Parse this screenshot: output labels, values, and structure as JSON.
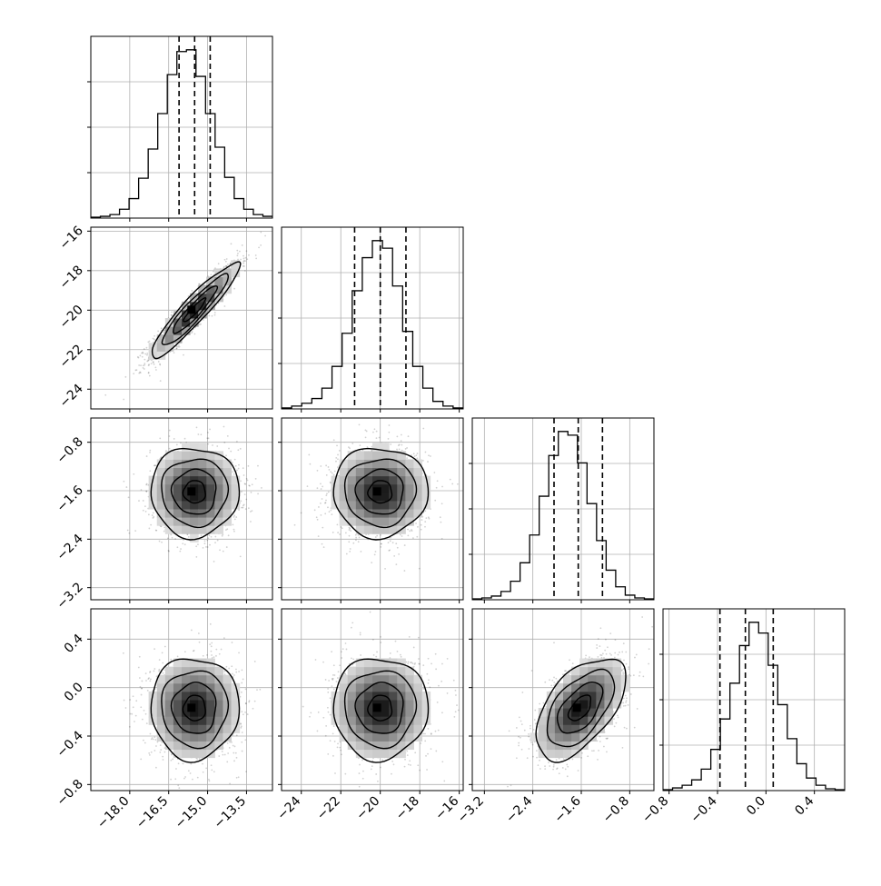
{
  "chart_data": {
    "type": "corner",
    "grid": true,
    "parameters": [
      {
        "range": [
          -19.5,
          -12.5
        ],
        "quantiles": [
          -16.1,
          -15.5,
          -14.9
        ],
        "ticks": [
          -18.0,
          -16.5,
          -15.0,
          -13.5
        ],
        "tick_labels": [
          "−18.0",
          "−16.5",
          "−15.0",
          "−13.5"
        ],
        "mean": -15.5,
        "sd": 0.85,
        "hist": [
          1,
          2,
          4,
          10,
          22,
          45,
          78,
          118,
          162,
          188,
          190,
          160,
          118,
          80,
          46,
          22,
          10,
          4,
          2
        ]
      },
      {
        "range": [
          -25,
          -15.8
        ],
        "quantiles": [
          -21.3,
          -20.0,
          -18.7
        ],
        "ticks": [
          -24,
          -22,
          -20,
          -18,
          -16
        ],
        "tick_labels": [
          "−24",
          "−22",
          "−20",
          "−18",
          "−16"
        ],
        "mean": -20.0,
        "sd": 1.2,
        "hist": [
          1,
          3,
          6,
          11,
          22,
          45,
          80,
          125,
          160,
          178,
          170,
          130,
          82,
          45,
          22,
          8,
          3,
          1
        ]
      },
      {
        "range": [
          -3.4,
          -0.4
        ],
        "quantiles": [
          -2.05,
          -1.65,
          -1.25
        ],
        "ticks": [
          -3.2,
          -2.4,
          -1.6,
          -0.8
        ],
        "tick_labels": [
          "−3.2",
          "−2.4",
          "−1.6",
          "−0.8"
        ],
        "mean": -1.62,
        "sd": 0.37,
        "hist": [
          1,
          2,
          4,
          9,
          20,
          40,
          70,
          112,
          156,
          182,
          178,
          148,
          104,
          64,
          32,
          14,
          5,
          2,
          1
        ]
      },
      {
        "range": [
          -0.85,
          0.65
        ],
        "quantiles": [
          -0.38,
          -0.17,
          0.06
        ],
        "ticks": [
          -0.8,
          -0.4,
          0.0,
          0.4
        ],
        "tick_labels": [
          "−0.8",
          "−0.4",
          "0.0",
          "0.4"
        ],
        "mean": -0.17,
        "sd": 0.21,
        "hist": [
          1,
          3,
          6,
          12,
          24,
          46,
          80,
          120,
          162,
          188,
          176,
          140,
          96,
          58,
          30,
          14,
          6,
          2,
          1
        ]
      }
    ],
    "correlations": [
      [
        1.0,
        0.93,
        0.0,
        0.0
      ],
      [
        0.93,
        1.0,
        0.0,
        0.0
      ],
      [
        0.0,
        0.0,
        1.0,
        0.55
      ],
      [
        0.0,
        0.0,
        0.55,
        1.0
      ]
    ],
    "contour_levels_sigma": [
      0.5,
      1.0,
      1.5,
      2.0
    ]
  }
}
